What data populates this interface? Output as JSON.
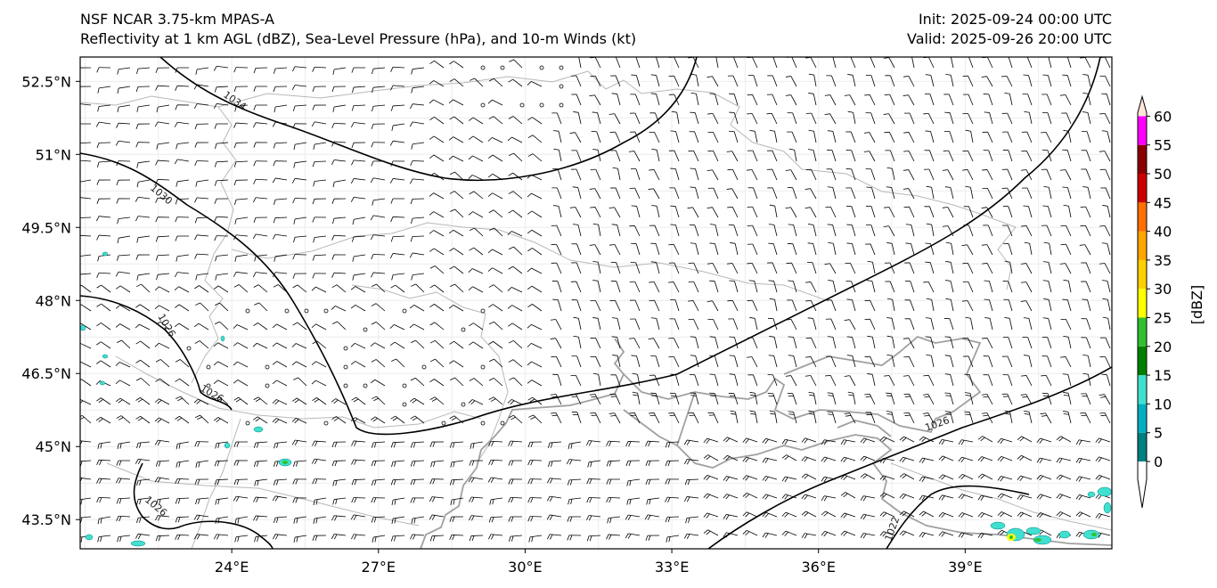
{
  "header": {
    "model": "NSF NCAR 3.75-km MPAS-A",
    "fields": "Reflectivity at 1 km AGL (dBZ), Sea-Level Pressure (hPa), and 10-m Winds (kt)",
    "init": "Init: 2025-09-24 00:00 UTC",
    "valid": "Valid: 2025-09-26 20:00 UTC"
  },
  "map": {
    "lon_range": [
      20.9,
      42.0
    ],
    "lat_range": [
      42.9,
      53.0
    ],
    "lon_ticks": [
      {
        "value": 24,
        "label": "24°E"
      },
      {
        "value": 27,
        "label": "27°E"
      },
      {
        "value": 30,
        "label": "30°E"
      },
      {
        "value": 33,
        "label": "33°E"
      },
      {
        "value": 36,
        "label": "36°E"
      },
      {
        "value": 39,
        "label": "39°E"
      }
    ],
    "lat_ticks": [
      {
        "value": 52.5,
        "label": "52.5°N"
      },
      {
        "value": 51,
        "label": "51°N"
      },
      {
        "value": 49.5,
        "label": "49.5°N"
      },
      {
        "value": 48,
        "label": "48°N"
      },
      {
        "value": 46.5,
        "label": "46.5°N"
      },
      {
        "value": 45,
        "label": "45°N"
      },
      {
        "value": 43.5,
        "label": "43.5°N"
      }
    ],
    "isobar_labels": [
      "1034",
      "1030",
      "1026",
      "1026",
      "1026",
      "1026",
      "1022"
    ],
    "colors": {
      "isobar": "#000000",
      "coastline": "#a0a0a0",
      "border": "#b8b8b8",
      "gridline": "#ececec",
      "barb": "#000000"
    }
  },
  "colorbar": {
    "label": "[dBZ]",
    "ticks": [
      "0",
      "5",
      "10",
      "15",
      "20",
      "25",
      "30",
      "35",
      "40",
      "45",
      "50",
      "55",
      "60"
    ],
    "colors": [
      "#008080",
      "#00b0c0",
      "#40e0d0",
      "#008000",
      "#30c030",
      "#ffff00",
      "#ffd000",
      "#ffa500",
      "#ff7000",
      "#cc0000",
      "#8b0000",
      "#ff00ff",
      "#ffe4d8"
    ]
  }
}
